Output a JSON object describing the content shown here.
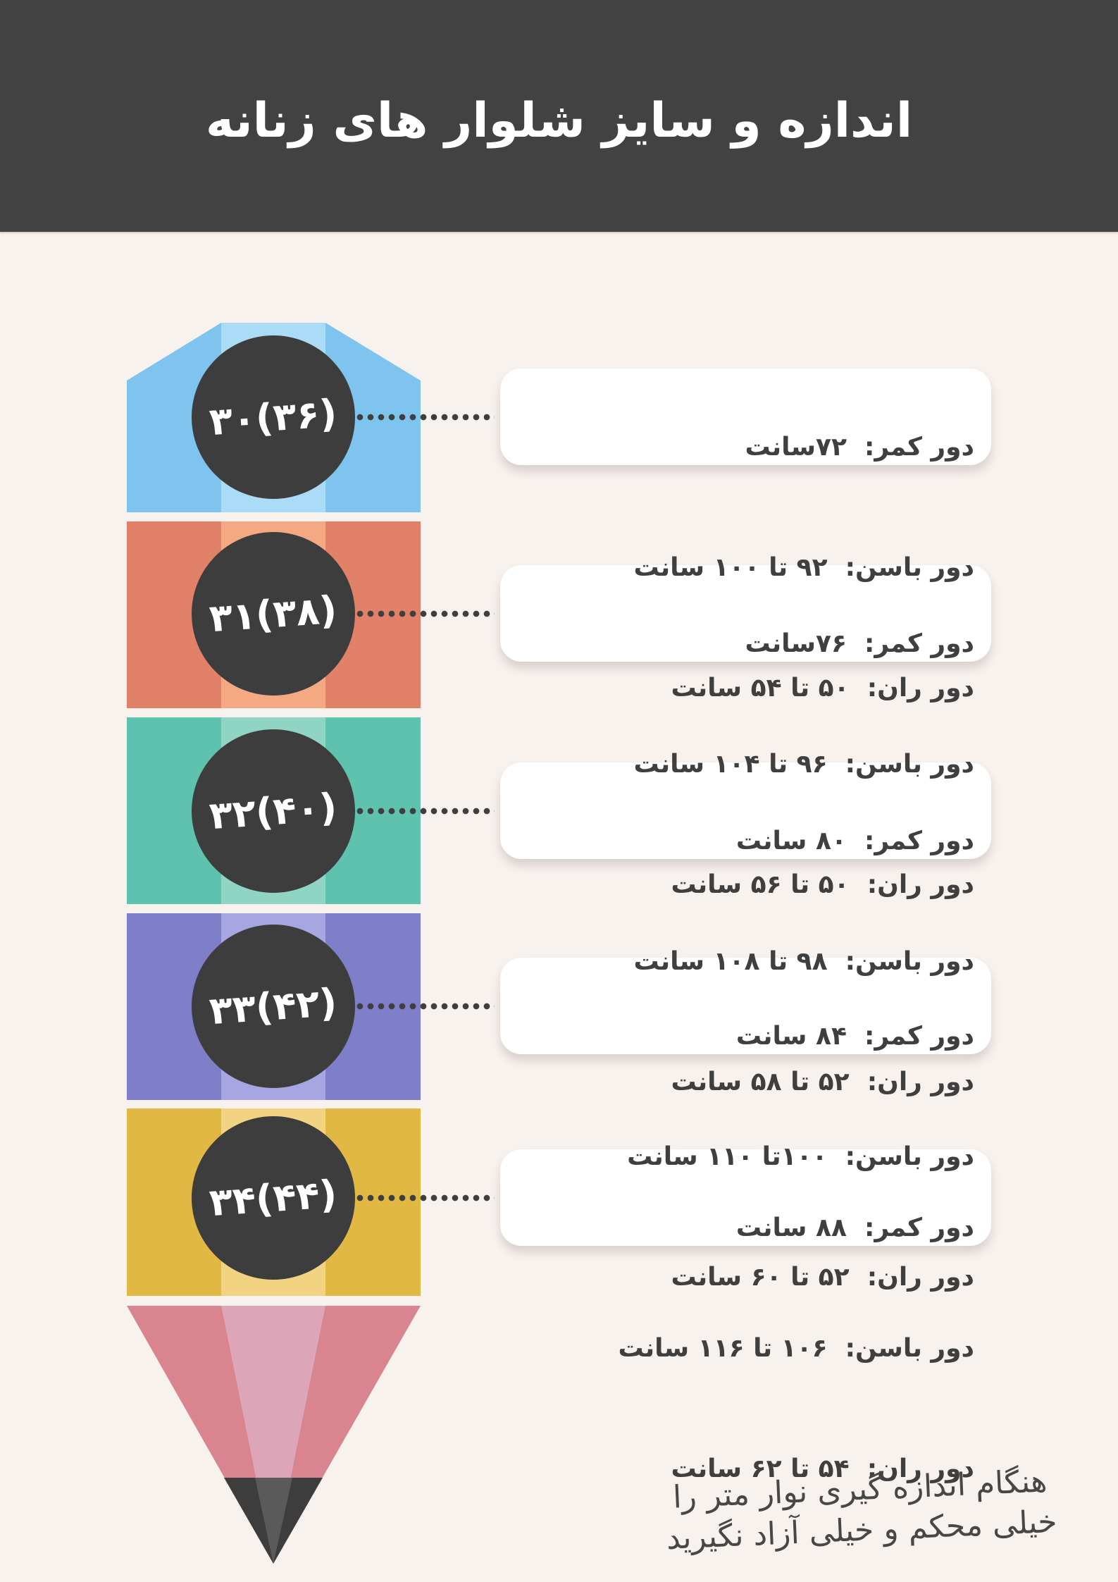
{
  "header": {
    "title": "اندازه و سایز شلوار های زنانه"
  },
  "rows": [
    {
      "size": "۳۰(۳۶)",
      "waist": "دور کمر:  ۷۲سانت",
      "hip": "دور باسن:  ۹۲ تا ۱۰۰ سانت",
      "thigh": "دور ران:  ۵۰ تا ۵۴ سانت",
      "color_side": "#7fc4ee",
      "color_strip": "#abdcf7"
    },
    {
      "size": "۳۱(۳۸)",
      "waist": "دور کمر:  ۷۶سانت",
      "hip": "دور باسن:  ۹۶ تا ۱۰۴ سانت",
      "thigh": "دور ران:  ۵۰ تا ۵۶ سانت",
      "color_side": "#e08168",
      "color_strip": "#f4a983"
    },
    {
      "size": "۳۲(۴۰)",
      "waist": "دور کمر:  ۸۰ سانت",
      "hip": "دور باسن:  ۹۸ تا ۱۰۸ سانت",
      "thigh": "دور ران:  ۵۲ تا ۵۸ سانت",
      "color_side": "#5fc2ae",
      "color_strip": "#90d4c4"
    },
    {
      "size": "۳۳(۴۲)",
      "waist": "دور کمر:  ۸۴ سانت",
      "hip": "دور باسن:  ۱۰۰تا ۱۱۰ سانت",
      "thigh": "دور ران:  ۵۲ تا ۶۰ سانت",
      "color_side": "#7f7ec8",
      "color_strip": "#a7a5e2"
    },
    {
      "size": "۳۴(۴۴)",
      "waist": "دور کمر:  ۸۸ سانت",
      "hip": "دور باسن:  ۱۰۶ تا ۱۱۶ سانت",
      "thigh": "دور ران:  ۵۴ تا ۶۲ سانت",
      "color_side": "#e2b845",
      "color_strip": "#f2d382"
    }
  ],
  "pencil_tip": {
    "wood_side": "#d9848f",
    "wood_strip": "#dda6b8",
    "graphite": "#3d3d3d",
    "graphite_facet": "#5a5a5a"
  },
  "footer": {
    "line1": "هنگام اندازه گیری نوار متر را",
    "line2": "خیلی محکم و خیلی آزاد نگیرید"
  },
  "colors": {
    "page_bg": "#f8f2ef",
    "header_bg": "#424242",
    "title_color": "#ffffff",
    "circle_bg": "#3d3d3d",
    "circle_text": "#ffffff",
    "dot_color": "#3e3e3e",
    "box_bg": "#ffffff",
    "text_color": "#3f3f3f",
    "footer_color": "#474747"
  }
}
